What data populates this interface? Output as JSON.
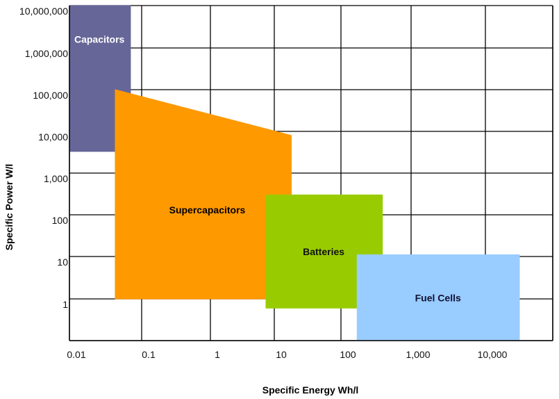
{
  "chart_data": {
    "type": "area",
    "title": "",
    "xlabel": "Specific Energy Wh/l",
    "ylabel": "Specific Power W/l",
    "x_scale": "log",
    "y_scale": "log",
    "xlim": [
      0.01,
      100000
    ],
    "ylim": [
      0.1,
      10000000
    ],
    "grid": true,
    "x_ticks": [
      {
        "value": 0.01,
        "label": "0.01"
      },
      {
        "value": 0.1,
        "label": "0.1"
      },
      {
        "value": 1,
        "label": "1"
      },
      {
        "value": 10,
        "label": "10"
      },
      {
        "value": 100,
        "label": "100"
      },
      {
        "value": 1000,
        "label": "1,000"
      },
      {
        "value": 10000,
        "label": "10,000"
      }
    ],
    "y_ticks": [
      {
        "value": 10000000,
        "label": "10,000,000"
      },
      {
        "value": 1000000,
        "label": "1,000,000"
      },
      {
        "value": 100000,
        "label": "100,000"
      },
      {
        "value": 10000,
        "label": "10,000"
      },
      {
        "value": 1000,
        "label": "1,000"
      },
      {
        "value": 100,
        "label": "100"
      },
      {
        "value": 10,
        "label": "10"
      },
      {
        "value": 1,
        "label": "1"
      }
    ],
    "regions": [
      {
        "name": "Capacitors",
        "color": "#666699",
        "text_color": "#ffffff",
        "points": [
          [
            0.01,
            3300
          ],
          [
            0.07,
            3300
          ],
          [
            0.07,
            10000000
          ],
          [
            0.01,
            10000000
          ]
        ],
        "label_at": [
          0.026,
          1600000
        ]
      },
      {
        "name": "Supercapacitors",
        "color": "#ff9900",
        "text_color": "#000000",
        "points": [
          [
            0.043,
            100000
          ],
          [
            18,
            8000
          ],
          [
            18,
            1
          ],
          [
            0.043,
            1
          ]
        ],
        "label_at": [
          0.9,
          130
        ]
      },
      {
        "name": "Batteries",
        "color": "#99cc00",
        "text_color": "#111111",
        "points": [
          [
            7.4,
            300
          ],
          [
            390,
            300
          ],
          [
            390,
            0.6
          ],
          [
            7.4,
            0.6
          ]
        ],
        "label_at": [
          55,
          13
        ]
      },
      {
        "name": "Fuel Cells",
        "color": "#99ccff",
        "text_color": "#111133",
        "points": [
          [
            170,
            11
          ],
          [
            32000,
            11
          ],
          [
            32000,
            0.1
          ],
          [
            170,
            0.1
          ]
        ],
        "label_at": [
          2300,
          1.05
        ]
      }
    ]
  }
}
